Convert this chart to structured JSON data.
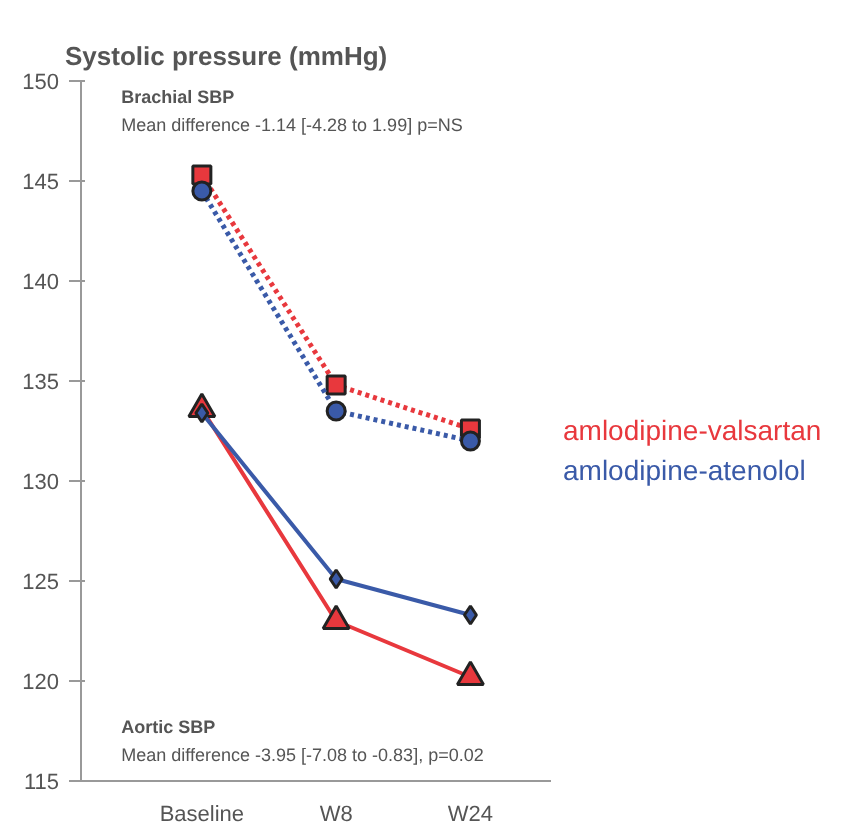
{
  "chart_data": {
    "type": "line",
    "title": "Systolic pressure (mmHg)",
    "categories": [
      "Baseline",
      "W8",
      "W24"
    ],
    "ylim": [
      115,
      150
    ],
    "yticks": [
      115,
      120,
      125,
      130,
      135,
      140,
      145,
      150
    ],
    "grid": false,
    "legend": "right",
    "series": [
      {
        "color": "#e8383d",
        "values": [
          145.3,
          134.8,
          132.6
        ],
        "marker": "square",
        "line_style": "dotted"
      },
      {
        "color": "#3a5aa8",
        "values": [
          144.5,
          133.5,
          132.0
        ],
        "marker": "circle",
        "line_style": "dotted"
      },
      {
        "name": "amlodipine-valsartan",
        "color": "#e8383d",
        "values": [
          133.6,
          123.0,
          120.2
        ],
        "marker": "triangle",
        "line_style": "solid"
      },
      {
        "name": "amlodipine-atenolol",
        "color": "#3a5aa8",
        "values": [
          133.4,
          125.1,
          123.3
        ],
        "marker": "diamond",
        "line_style": "solid"
      }
    ],
    "annotations": [
      "Brachial SBP",
      "Mean difference -1.14 [-4.28 to 1.99] p=NS",
      "Aortic SBP",
      "Mean difference -3.95 [-7.08 to -0.83], p=0.02"
    ]
  }
}
